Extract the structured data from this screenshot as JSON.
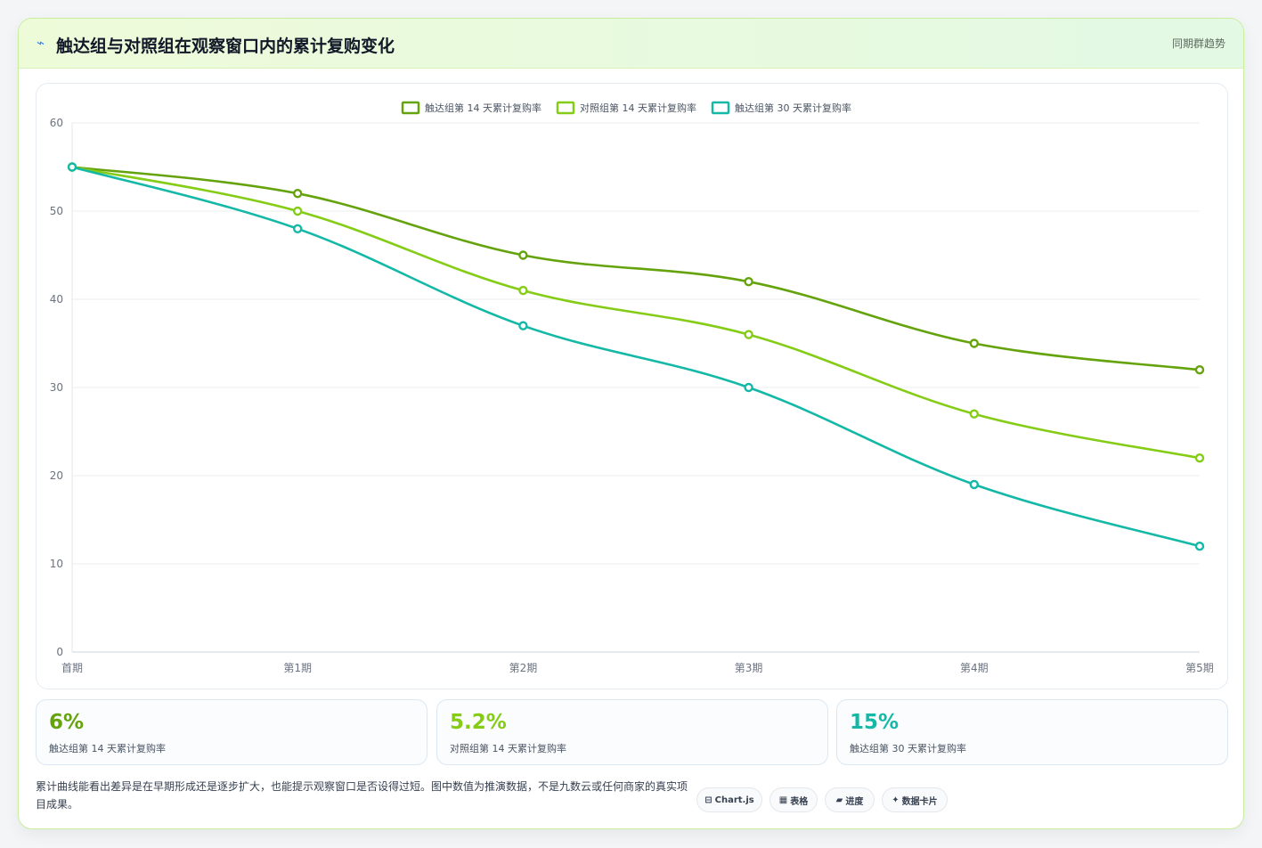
{
  "header": {
    "title": "触达组与对照组在观察窗口内的累计复购变化",
    "tag": "同期群趋势"
  },
  "chart_data": {
    "type": "line",
    "categories": [
      "首期",
      "第1期",
      "第2期",
      "第3期",
      "第4期",
      "第5期"
    ],
    "series": [
      {
        "name": "触达组第 14 天累计复购率",
        "values": [
          55,
          52,
          45,
          42,
          35,
          32
        ],
        "color": "#65a30d"
      },
      {
        "name": "对照组第 14 天累计复购率",
        "values": [
          55,
          50,
          41,
          36,
          27,
          22
        ],
        "color": "#84cc16"
      },
      {
        "name": "触达组第 30 天累计复购率",
        "values": [
          55,
          48,
          37,
          30,
          19,
          12
        ],
        "color": "#14b8a6"
      }
    ],
    "ylim": [
      0,
      60
    ],
    "yticks": [
      0,
      10,
      20,
      30,
      40,
      50,
      60
    ],
    "grid": true,
    "legend": "top-center"
  },
  "kpis": [
    {
      "value": "6%",
      "label": "触达组第 14 天累计复购率",
      "color": "#65a30d"
    },
    {
      "value": "5.2%",
      "label": "对照组第 14 天累计复购率",
      "color": "#84cc16"
    },
    {
      "value": "15%",
      "label": "触达组第 30 天累计复购率",
      "color": "#14b8a6"
    }
  ],
  "note": "累计曲线能看出差异是在早期形成还是逐步扩大，也能提示观察窗口是否设得过短。图中数值为推演数据，不是九数云或任何商家的真实项目成果。",
  "chips": [
    {
      "icon": "⊟",
      "label": "Chart.js"
    },
    {
      "icon": "▦",
      "label": "表格"
    },
    {
      "icon": "▰",
      "label": "进度"
    },
    {
      "icon": "✦",
      "label": "数据卡片"
    }
  ]
}
